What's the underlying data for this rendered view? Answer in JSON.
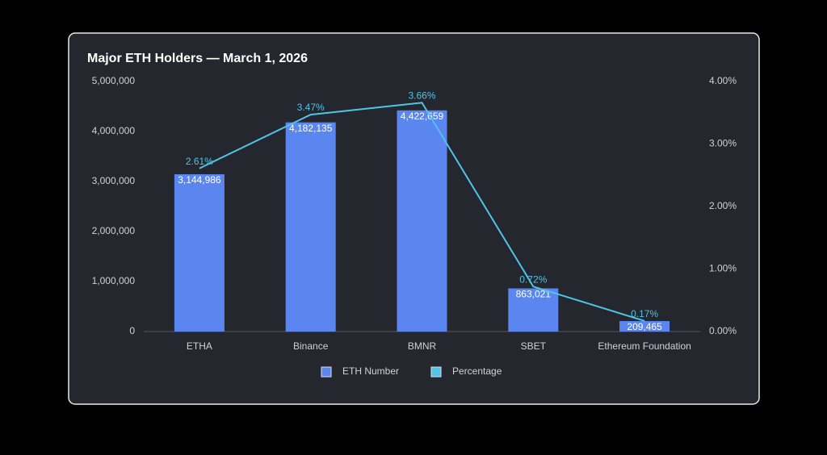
{
  "chart_data": {
    "type": "bar",
    "title": "Major ETH Holders — March 1, 2026",
    "categories": [
      "ETHA",
      "Binance",
      "BMNR",
      "SBET",
      "Ethereum Foundation"
    ],
    "series": [
      {
        "name": "ETH Number",
        "type": "bar",
        "color": "#5b86f0",
        "axis": "y",
        "values": [
          3144986,
          4182135,
          4422659,
          863021,
          209465
        ],
        "value_labels": [
          "3,144,986",
          "4,182,135",
          "4,422,659",
          "863,021",
          "209,465"
        ]
      },
      {
        "name": "Percentage",
        "type": "line",
        "color": "#4fc3e8",
        "axis": "y2",
        "values": [
          2.61,
          3.47,
          3.66,
          0.72,
          0.17
        ],
        "value_labels": [
          "2.61%",
          "3.47%",
          "3.66%",
          "0.72%",
          "0.17%"
        ]
      }
    ],
    "ylim": [
      0,
      5000000
    ],
    "yticks": [
      0,
      {
        "value": 1000000,
        "label": "1,000,000"
      },
      {
        "value": 2000000,
        "label": "2,000,000"
      },
      {
        "value": 3000000,
        "label": "3,000,000"
      },
      {
        "value": 4000000,
        "label": "4,000,000"
      },
      {
        "value": 5000000,
        "label": "5,000,000"
      }
    ],
    "y2lim": [
      0,
      4
    ],
    "y2ticks": [
      {
        "value": 0,
        "label": "0.00%"
      },
      {
        "value": 1,
        "label": "1.00%"
      },
      {
        "value": 2,
        "label": "2.00%"
      },
      {
        "value": 3,
        "label": "3.00%"
      },
      {
        "value": 4,
        "label": "4.00%"
      }
    ],
    "grid": false,
    "legend": "bottom"
  }
}
